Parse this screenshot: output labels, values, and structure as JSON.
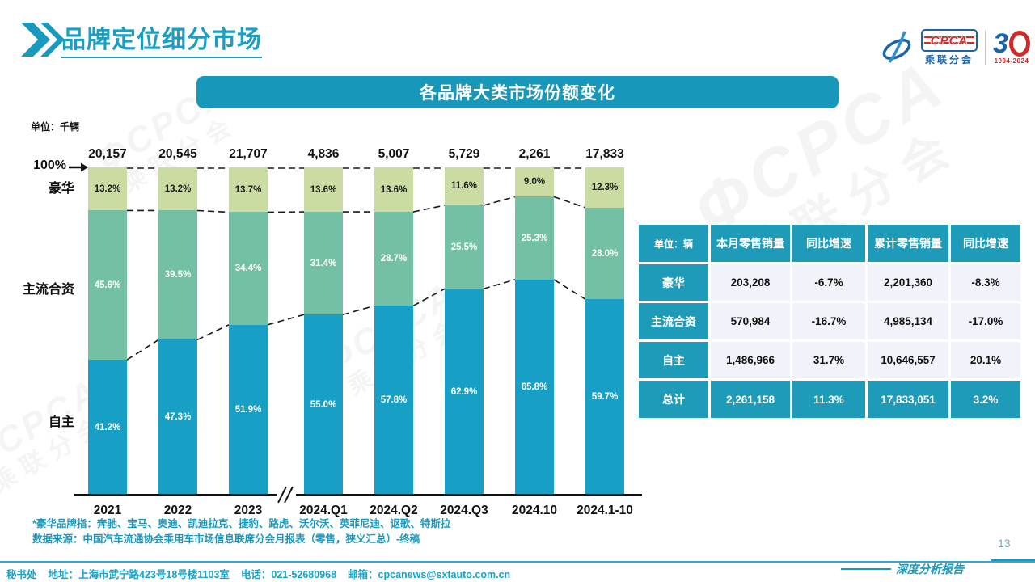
{
  "page": {
    "title": "品牌定位细分市场",
    "page_number": "13",
    "report_type_label": "深度分析报告",
    "notes": [
      "*豪华品牌指：奔驰、宝马、奥迪、凯迪拉克、捷豹、路虎、沃尔沃、英菲尼迪、讴歌、特斯拉",
      "数据来源：中国汽车流通协会乘用车市场信息联席分会月报表（零售，狭义汇总）-终稿"
    ],
    "footer": {
      "secretariat": "秘书处",
      "address": "地址：上海市武宁路423号18号楼1103室",
      "phone": "电话：021-52680968",
      "email": "邮箱：cpcanews@sxtauto.com.cn"
    }
  },
  "logo": {
    "brand_acronym": "CPCA",
    "brand_name_cn": "乘联分会",
    "anniversary_number_left": "3",
    "anniversary_years": "1994-2024"
  },
  "chart_data": {
    "type": "bar",
    "subtype": "100%-stacked-column",
    "title": "各品牌大类市场份额变化",
    "unit_label": "单位：千辆",
    "axis_top_label": "100%",
    "categories": [
      "2021",
      "2022",
      "2023",
      "2024.Q1",
      "2024.Q2",
      "2024.Q3",
      "2024.10",
      "2024.1-10"
    ],
    "totals_thousand_units": [
      "20,157",
      "20,545",
      "21,707",
      "4,836",
      "5,007",
      "5,729",
      "2,261",
      "17,833"
    ],
    "axis_break_after_index": 2,
    "ylim": [
      0,
      100
    ],
    "legend_position": "left-axis-labels",
    "grid": false,
    "series": [
      {
        "name": "豪华",
        "color": "#CBDCA2",
        "label_color": "#1a1a1a",
        "values": [
          13.2,
          13.2,
          13.7,
          13.6,
          13.6,
          11.6,
          9.0,
          12.3
        ]
      },
      {
        "name": "主流合资",
        "color": "#74C0A4",
        "label_color": "#ffffff",
        "values": [
          45.6,
          39.5,
          34.4,
          31.4,
          28.7,
          25.5,
          25.3,
          28.0
        ]
      },
      {
        "name": "自主",
        "color": "#189FC6",
        "label_color": "#ffffff",
        "values": [
          41.2,
          47.3,
          51.9,
          55.0,
          57.8,
          62.9,
          65.8,
          59.7
        ]
      }
    ]
  },
  "table": {
    "unit_header": "单位：辆",
    "columns": [
      "本月零售销量",
      "同比增速",
      "累计零售销量",
      "同比增速"
    ],
    "rows": [
      {
        "label": "豪华",
        "cells": [
          "203,208",
          "-6.7%",
          "2,201,360",
          "-8.3%"
        ],
        "is_total": false
      },
      {
        "label": "主流合资",
        "cells": [
          "570,984",
          "-16.7%",
          "4,985,134",
          "-17.0%"
        ],
        "is_total": false
      },
      {
        "label": "自主",
        "cells": [
          "1,486,966",
          "31.7%",
          "10,646,557",
          "20.1%"
        ],
        "is_total": false
      },
      {
        "label": "总计",
        "cells": [
          "2,261,158",
          "11.3%",
          "17,833,051",
          "3.2%"
        ],
        "is_total": true
      }
    ]
  },
  "colors": {
    "accent_teal": "#1798BA",
    "table_teal": "#1E9BB8",
    "title_text": "#1A9FC2",
    "note_text": "#1898BC",
    "logo_blue": "#1B63A8",
    "logo_red": "#D02A2A",
    "dash_line": "#1a1a1a"
  }
}
